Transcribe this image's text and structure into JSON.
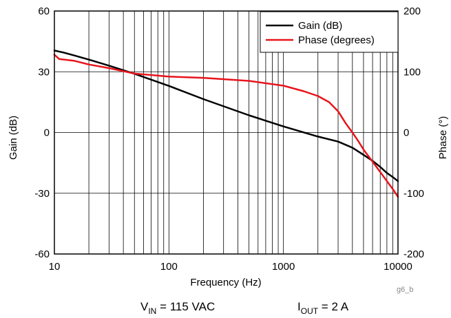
{
  "chart_data": {
    "type": "line",
    "xlabel": "Frequency (Hz)",
    "ylabel": "Gain (dB)",
    "y2label": "Phase (°)",
    "xscale": "log",
    "xlim": [
      10,
      10000
    ],
    "ylim": [
      -60,
      60
    ],
    "y2lim": [
      -200,
      200
    ],
    "xticks": [
      "10",
      "100",
      "1000",
      "10000"
    ],
    "yticks": [
      "60",
      "30",
      "0",
      "-30",
      "-60"
    ],
    "y2ticks": [
      "200",
      "100",
      "0",
      "-100",
      "-200"
    ],
    "grid": true,
    "legend_position": "top-right",
    "series": [
      {
        "name": "Gain (dB)",
        "color": "#000000",
        "axis": "left",
        "x": [
          10,
          12,
          15,
          20,
          30,
          50,
          100,
          200,
          500,
          1000,
          2000,
          3000,
          4000,
          5000,
          6000,
          7000,
          8000,
          9000,
          10000
        ],
        "y": [
          40.5,
          39.5,
          38,
          36,
          33,
          29,
          23,
          16.5,
          8.5,
          3,
          -2,
          -4.5,
          -7.5,
          -11,
          -14,
          -17,
          -20,
          -22,
          -24
        ]
      },
      {
        "name": "Phase (degrees)",
        "color": "#e8141c",
        "axis": "right",
        "x": [
          10,
          11,
          15,
          20,
          30,
          40,
          50,
          100,
          200,
          500,
          1000,
          1500,
          2000,
          2500,
          3000,
          3500,
          4000,
          4500,
          5000,
          6000,
          7000,
          8000,
          9000,
          10000
        ],
        "y": [
          128,
          121,
          118,
          112,
          106,
          101,
          97,
          92,
          90,
          85,
          77,
          68,
          60,
          50,
          35,
          15,
          0,
          -14,
          -28,
          -48,
          -65,
          -80,
          -93,
          -106
        ]
      }
    ]
  },
  "caption": {
    "vin_prefix": "V",
    "vin_sub": "IN",
    "vin_value": " = 115 VAC",
    "iout_prefix": "I",
    "iout_sub": "OUT",
    "iout_value": " = 2 A"
  },
  "figure_code": "g6_b"
}
